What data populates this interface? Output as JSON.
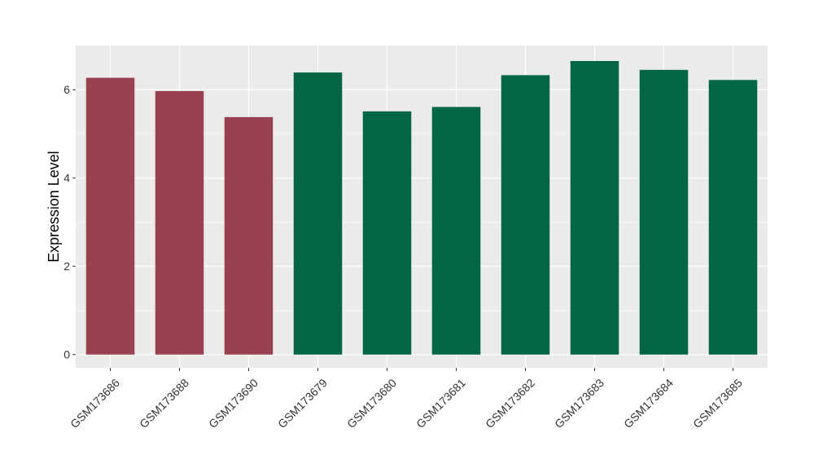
{
  "chart_data": {
    "type": "bar",
    "title": "",
    "xlabel": "",
    "ylabel": "Expression Level",
    "ylim": [
      -0.3,
      7.0
    ],
    "yticks": [
      0,
      2,
      4,
      6
    ],
    "ytick_labels": [
      "0",
      "2",
      "4",
      "6"
    ],
    "grid": true,
    "legend": "none",
    "colors": {
      "panel_background": "#ebebeb",
      "grid_major": "#ffffff",
      "group_a": "#99424f",
      "group_b": "#006644"
    },
    "categories": [
      "GSM173686",
      "GSM173688",
      "GSM173690",
      "GSM173679",
      "GSM173680",
      "GSM173681",
      "GSM173682",
      "GSM173683",
      "GSM173684",
      "GSM173685"
    ],
    "values": [
      6.27,
      5.97,
      5.38,
      6.39,
      5.51,
      5.61,
      6.33,
      6.65,
      6.45,
      6.22
    ],
    "bar_colors": [
      "#99424f",
      "#99424f",
      "#99424f",
      "#006644",
      "#006644",
      "#006644",
      "#006644",
      "#006644",
      "#006644",
      "#006644"
    ]
  }
}
